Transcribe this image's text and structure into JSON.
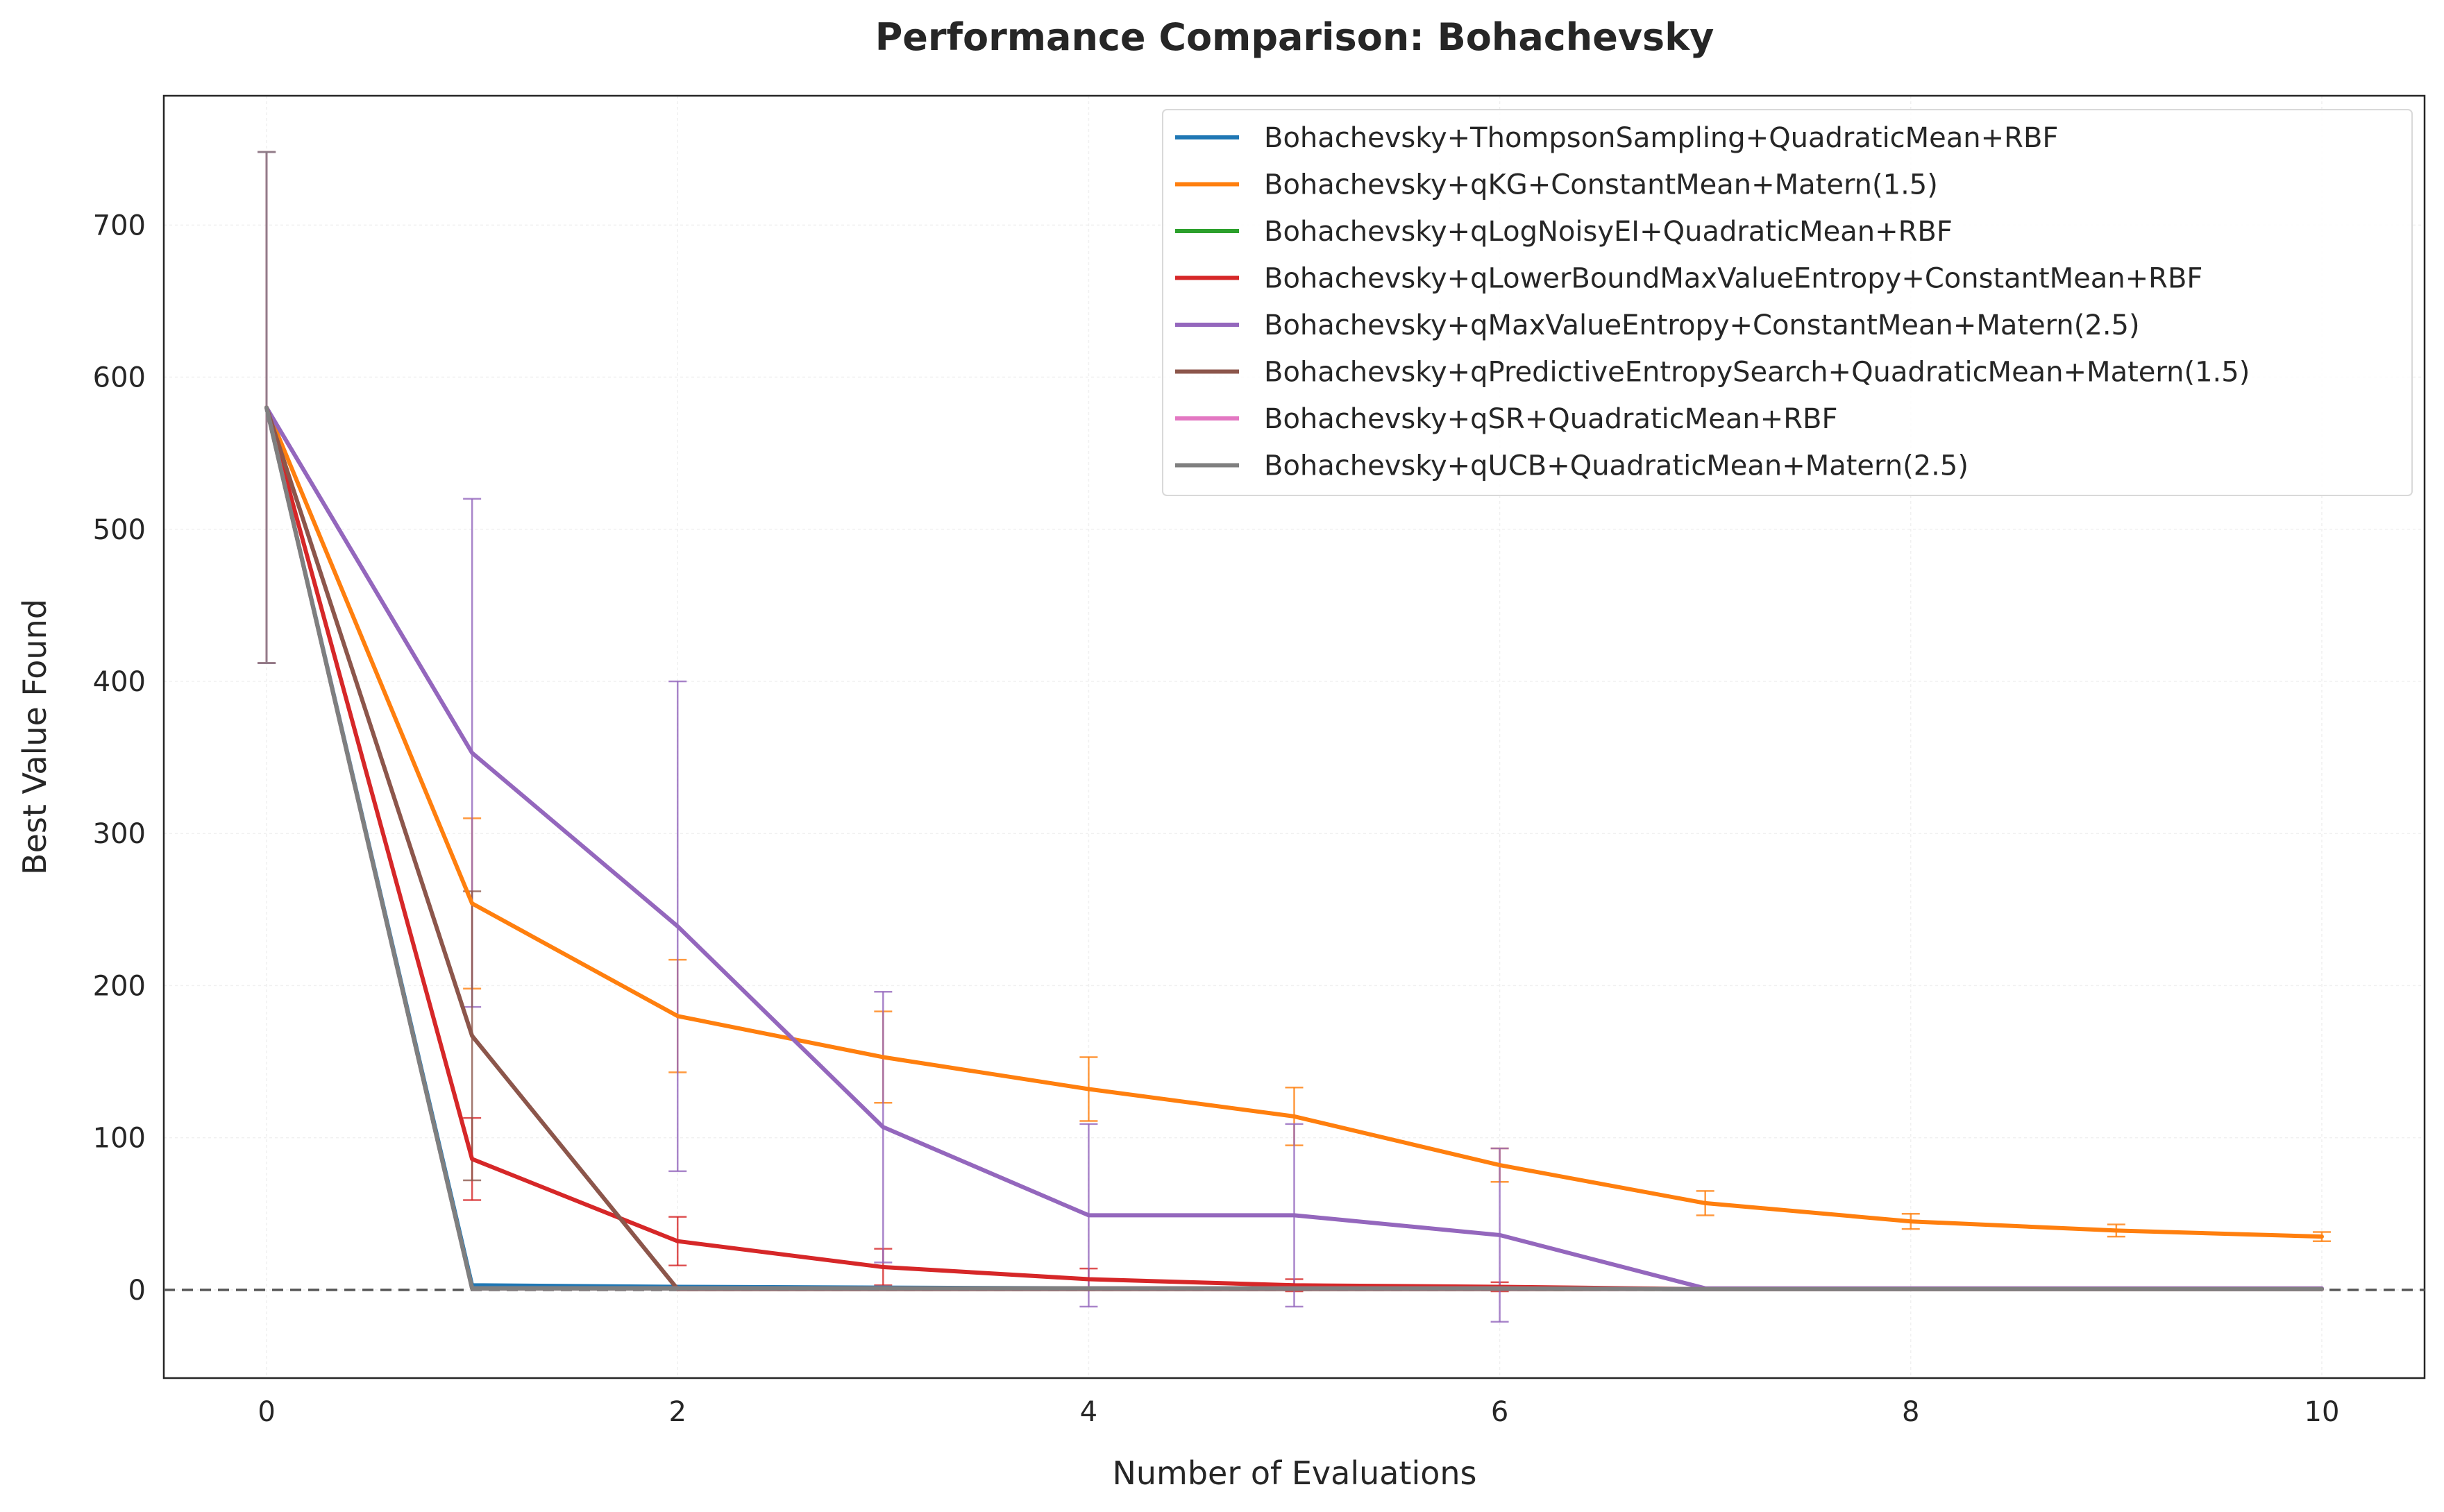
{
  "chart_data": {
    "type": "line",
    "title": "Performance Comparison: Bohachevsky",
    "xlabel": "Number of Evaluations",
    "ylabel": "Best Value Found",
    "xlim": [
      -0.5,
      10.5
    ],
    "ylim": [
      -58,
      785
    ],
    "xticks": [
      0,
      2,
      4,
      6,
      8,
      10
    ],
    "yticks": [
      0,
      100,
      200,
      300,
      400,
      500,
      600,
      700
    ],
    "grid": true,
    "legend_position": "top-right",
    "reference_line": {
      "y": 0,
      "style": "dashed",
      "color": "#555555"
    },
    "x": [
      0,
      1,
      2,
      3,
      4,
      5,
      6,
      7,
      8,
      9,
      10
    ],
    "series": [
      {
        "name": "Bohachevsky+ThompsonSampling+QuadraticMean+RBF",
        "color": "#1f77b4",
        "values": [
          580,
          3,
          2,
          1.5,
          1,
          1,
          1,
          0.5,
          0.5,
          0.5,
          0.5
        ],
        "error": [
          168,
          0,
          0,
          0,
          0,
          0,
          0,
          0,
          0,
          0,
          0
        ]
      },
      {
        "name": "Bohachevsky+qKG+ConstantMean+Matern(1.5)",
        "color": "#ff7f0e",
        "values": [
          580,
          254,
          180,
          153,
          132,
          114,
          82,
          57,
          45,
          39,
          35
        ],
        "error": [
          168,
          56,
          37,
          30,
          21,
          19,
          11,
          8,
          5,
          4,
          3
        ]
      },
      {
        "name": "Bohachevsky+qLogNoisyEI+QuadraticMean+RBF",
        "color": "#2ca02c",
        "values": [
          580,
          1,
          1,
          1,
          1,
          1,
          1,
          0.5,
          0.5,
          0.5,
          0.5
        ],
        "error": [
          168,
          0,
          0,
          0,
          0,
          0,
          0,
          0,
          0,
          0,
          0
        ]
      },
      {
        "name": "Bohachevsky+qLowerBoundMaxValueEntropy+ConstantMean+RBF",
        "color": "#d62728",
        "values": [
          580,
          86,
          32,
          15,
          7,
          3,
          2,
          0.5,
          0.5,
          0.5,
          0.5
        ],
        "error": [
          168,
          27,
          16,
          12,
          7,
          4,
          3,
          0,
          0,
          0,
          0
        ]
      },
      {
        "name": "Bohachevsky+qMaxValueEntropy+ConstantMean+Matern(2.5)",
        "color": "#9467bd",
        "values": [
          580,
          353,
          239,
          107,
          49,
          49,
          36,
          1,
          1,
          1,
          1
        ],
        "error": [
          168,
          167,
          161,
          89,
          60,
          60,
          57,
          0,
          0,
          0,
          0
        ]
      },
      {
        "name": "Bohachevsky+qPredictiveEntropySearch+QuadraticMean+Matern(1.5)",
        "color": "#8c564b",
        "values": [
          580,
          167,
          0.5,
          0.5,
          0.5,
          0.5,
          0.5,
          0.5,
          0.5,
          0.5,
          0.5
        ],
        "error": [
          168,
          95,
          0,
          0,
          0,
          0,
          0,
          0,
          0,
          0,
          0
        ]
      },
      {
        "name": "Bohachevsky+qSR+QuadraticMean+RBF",
        "color": "#e377c2",
        "values": [
          580,
          1,
          1,
          1,
          1,
          1,
          1,
          0.5,
          0.5,
          0.5,
          0.5
        ],
        "error": [
          168,
          0,
          0,
          0,
          0,
          0,
          0,
          0,
          0,
          0,
          0
        ]
      },
      {
        "name": "Bohachevsky+qUCB+QuadraticMean+Matern(2.5)",
        "color": "#7f7f7f",
        "values": [
          580,
          1,
          1,
          1,
          1,
          1,
          1,
          0.5,
          0.5,
          0.5,
          0.5
        ],
        "error": [
          168,
          0,
          0,
          0,
          0,
          0,
          0,
          0,
          0,
          0,
          0
        ]
      }
    ]
  }
}
